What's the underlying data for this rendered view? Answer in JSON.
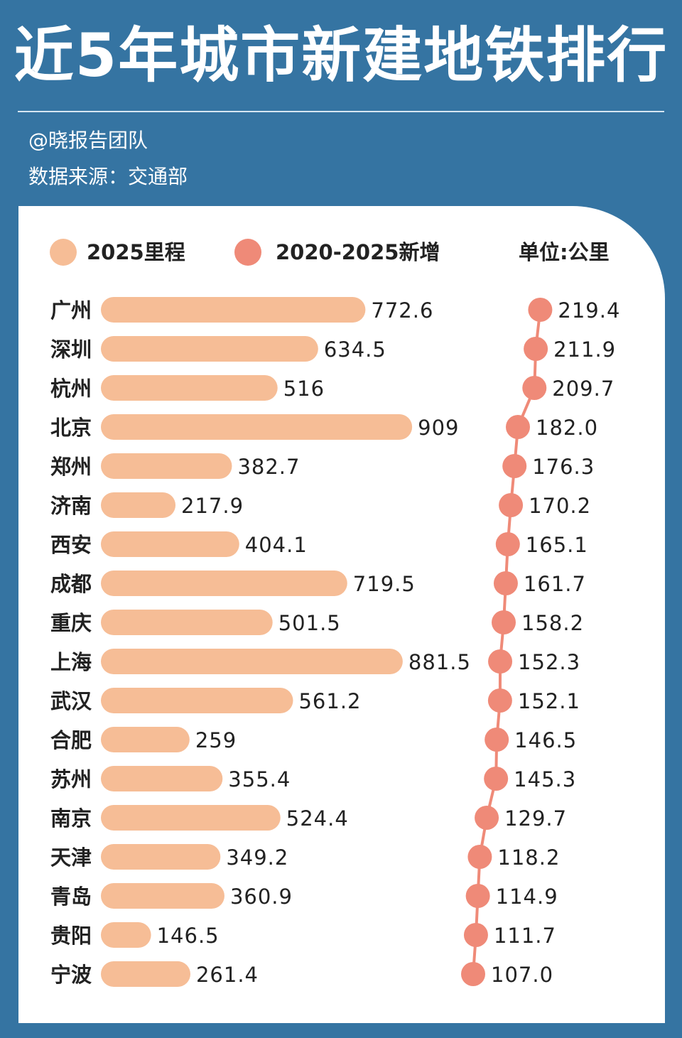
{
  "header": {
    "title": "近5年城市新建地铁排行",
    "author": "@晓报告团队",
    "source": "数据来源：交通部"
  },
  "legend": {
    "series1_label": "2025里程",
    "series2_label": "2020-2025新增",
    "unit": "单位:公里"
  },
  "colors": {
    "background": "#3574a2",
    "bar": "#f6bd96",
    "dot": "#ef8a78",
    "text": "#222222"
  },
  "chart_data": {
    "type": "bar",
    "categories": [
      "广州",
      "深圳",
      "杭州",
      "北京",
      "郑州",
      "济南",
      "西安",
      "成都",
      "重庆",
      "上海",
      "武汉",
      "合肥",
      "苏州",
      "南京",
      "天津",
      "青岛",
      "贵阳",
      "宁波"
    ],
    "series": [
      {
        "name": "2025里程",
        "values": [
          "772.6",
          "634.5",
          "516",
          "909",
          "382.7",
          "217.9",
          "404.1",
          "719.5",
          "501.5",
          "881.5",
          "561.2",
          "259",
          "355.4",
          "524.4",
          "349.2",
          "360.9",
          "146.5",
          "261.4"
        ]
      },
      {
        "name": "2020-2025新增",
        "values": [
          "219.4",
          "211.9",
          "209.7",
          "182.0",
          "176.3",
          "170.2",
          "165.1",
          "161.7",
          "158.2",
          "152.3",
          "152.1",
          "146.5",
          "145.3",
          "129.7",
          "118.2",
          "114.9",
          "111.7",
          "107.0"
        ]
      }
    ],
    "unit": "单位:公里"
  }
}
